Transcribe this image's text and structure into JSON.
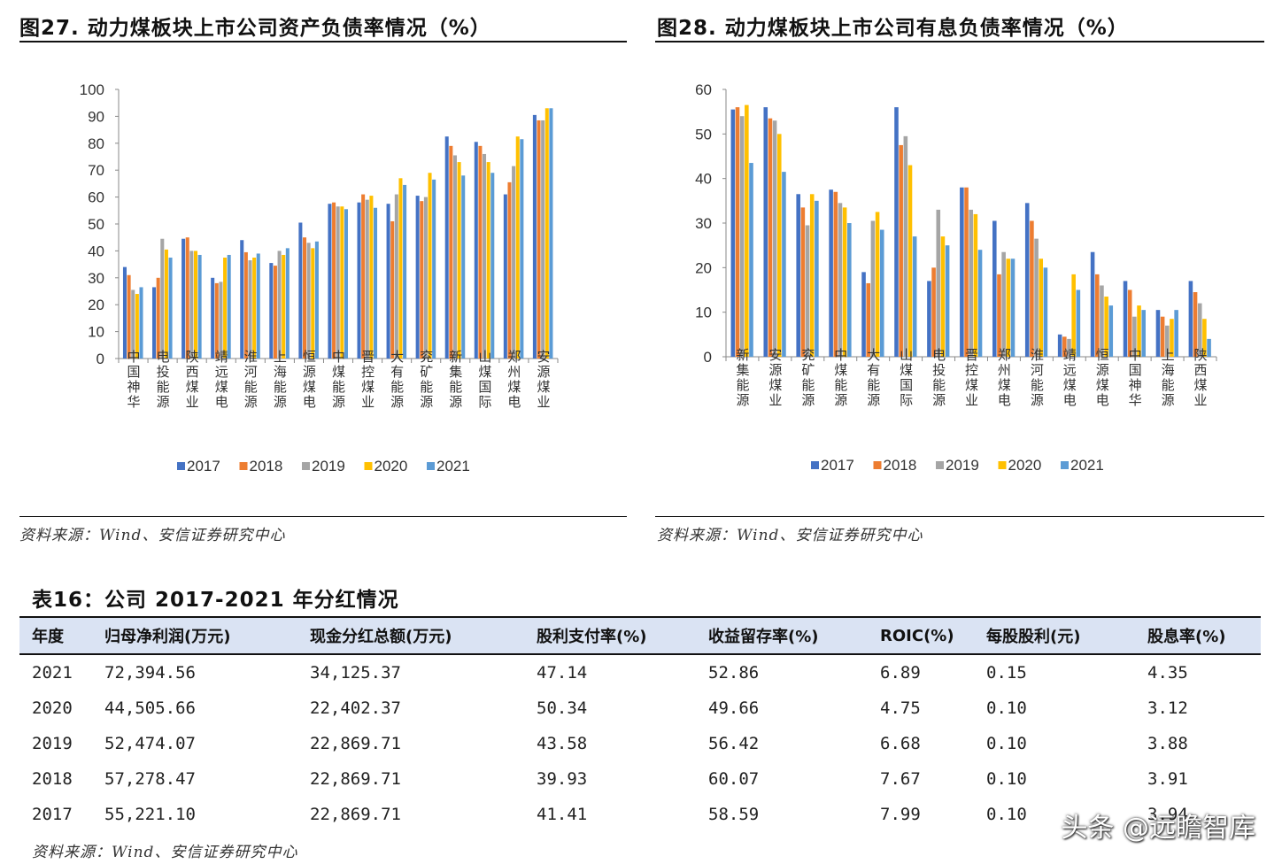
{
  "figure27": {
    "title": "图27. 动力煤板块上市公司资产负债率情况（%）",
    "source": "资料来源：Wind、安信证券研究中心"
  },
  "figure28": {
    "title": "图28. 动力煤板块上市公司有息负债率情况（%）",
    "source": "资料来源：Wind、安信证券研究中心"
  },
  "colors": {
    "2017": "#4472c4",
    "2018": "#ed7d31",
    "2019": "#a5a5a5",
    "2020": "#ffc000",
    "2021": "#5b9bd5"
  },
  "chart_data": [
    {
      "type": "bar",
      "title": "图27. 动力煤板块上市公司资产负债率情况（%）",
      "categories": [
        "中国神华",
        "电投能源",
        "陕西煤业",
        "靖远煤电",
        "淮河能源",
        "上海能源",
        "恒源煤电",
        "中煤能源",
        "晋控煤业",
        "大有能源",
        "兖矿能源",
        "新集能源",
        "山煤国际",
        "郑州煤电",
        "安源煤业"
      ],
      "series": [
        {
          "name": "2017",
          "values": [
            34,
            26.5,
            44.5,
            30,
            44,
            35.5,
            50.5,
            57.5,
            58,
            57.5,
            60.5,
            82.5,
            80.5,
            61,
            90.5
          ]
        },
        {
          "name": "2018",
          "values": [
            31,
            30,
            45,
            28,
            39.5,
            34.5,
            45,
            58,
            61,
            51,
            58.5,
            79,
            79,
            65.5,
            88.5
          ]
        },
        {
          "name": "2019",
          "values": [
            25.5,
            44.5,
            40,
            28.5,
            36.5,
            40,
            43,
            56.5,
            59,
            61,
            60,
            75.5,
            76,
            71.5,
            88.5
          ]
        },
        {
          "name": "2020",
          "values": [
            24,
            40.5,
            40,
            37.5,
            37.5,
            38.5,
            41,
            56.5,
            60.5,
            67,
            69,
            73,
            73,
            82.5,
            93
          ]
        },
        {
          "name": "2021",
          "values": [
            26.5,
            37.5,
            38.5,
            38.5,
            39,
            41,
            43.5,
            55.5,
            56,
            64.5,
            66.5,
            68,
            69,
            81.5,
            93
          ]
        }
      ],
      "ylim": [
        0,
        100
      ],
      "yticks": [
        0,
        10,
        20,
        30,
        40,
        50,
        60,
        70,
        80,
        90,
        100
      ],
      "legend": "bottom",
      "grid": false
    },
    {
      "type": "bar",
      "title": "图28. 动力煤板块上市公司有息负债率情况（%）",
      "categories": [
        "新集能源",
        "安源煤业",
        "兖矿能源",
        "中煤能源",
        "大有能源",
        "山煤国际",
        "电投能源",
        "晋控煤业",
        "郑州煤电",
        "淮河能源",
        "靖远煤电",
        "恒源煤电",
        "中国神华",
        "上海能源",
        "陕西煤业"
      ],
      "series": [
        {
          "name": "2017",
          "values": [
            55.5,
            56,
            36.5,
            37.5,
            19,
            56,
            17,
            38,
            30.5,
            34.5,
            5,
            23.5,
            17,
            10.5,
            17
          ]
        },
        {
          "name": "2018",
          "values": [
            56,
            53.5,
            33.5,
            37,
            16.5,
            47.5,
            20,
            38,
            18.5,
            30.5,
            4.5,
            18.5,
            15,
            9,
            14.5
          ]
        },
        {
          "name": "2019",
          "values": [
            54,
            53,
            29.5,
            34.5,
            30.5,
            49.5,
            33,
            33,
            23.5,
            26.5,
            4,
            16,
            9,
            7,
            12
          ]
        },
        {
          "name": "2020",
          "values": [
            56.5,
            50,
            36.5,
            33.5,
            32.5,
            43,
            27,
            32,
            22,
            22,
            18.5,
            13.5,
            11.5,
            8.5,
            8.5
          ]
        },
        {
          "name": "2021",
          "values": [
            43.5,
            41.5,
            35,
            30,
            28.5,
            27,
            25,
            24,
            22,
            20,
            15,
            11.5,
            10.5,
            10.5,
            4
          ]
        }
      ],
      "ylim": [
        0,
        60
      ],
      "yticks": [
        0,
        10,
        20,
        30,
        40,
        50,
        60
      ],
      "legend": "bottom",
      "grid": false
    }
  ],
  "table16": {
    "title": "表16：公司 2017-2021 年分红情况",
    "headers": [
      "年度",
      "归母净利润(万元)",
      "现金分红总额(万元)",
      "股利支付率(%)",
      "收益留存率(%)",
      "ROIC(%)",
      "每股股利(元)",
      "股息率(%)"
    ],
    "rows": [
      [
        "2021",
        "72,394.56",
        "34,125.37",
        "47.14",
        "52.86",
        "6.89",
        "0.15",
        "4.35"
      ],
      [
        "2020",
        "44,505.66",
        "22,402.37",
        "50.34",
        "49.66",
        "4.75",
        "0.10",
        "3.12"
      ],
      [
        "2019",
        "52,474.07",
        "22,869.71",
        "43.58",
        "56.42",
        "6.68",
        "0.10",
        "3.88"
      ],
      [
        "2018",
        "57,278.47",
        "22,869.71",
        "39.93",
        "60.07",
        "7.67",
        "0.10",
        "3.91"
      ],
      [
        "2017",
        "55,221.10",
        "22,869.71",
        "41.41",
        "58.59",
        "7.99",
        "0.10",
        "3.94"
      ]
    ],
    "source": "资料来源：Wind、安信证券研究中心"
  },
  "watermark": "头条 @远瞻智库"
}
